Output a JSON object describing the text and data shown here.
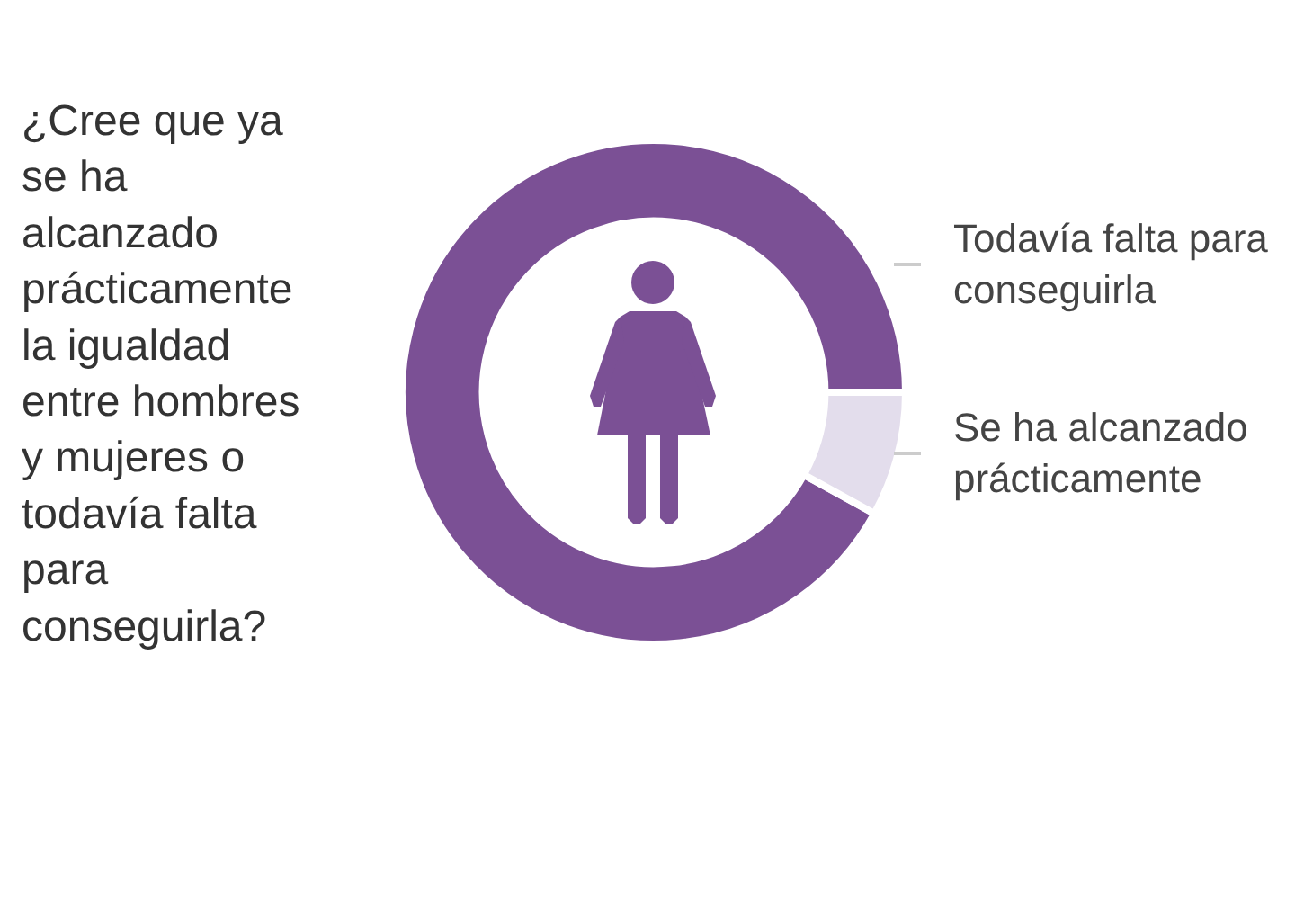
{
  "chart_data": {
    "type": "donut",
    "title": "¿Cree que ya se ha alcanzado prácticamente la igualdad entre hombres y mujeres o todavía falta para conseguirla?",
    "categories": [
      "Todavía falta para conseguirla",
      "Se ha alcanzado prácticamente"
    ],
    "values": [
      92,
      8
    ],
    "colors": [
      "#7b5095",
      "#e3ddec"
    ],
    "legend": false
  }
}
